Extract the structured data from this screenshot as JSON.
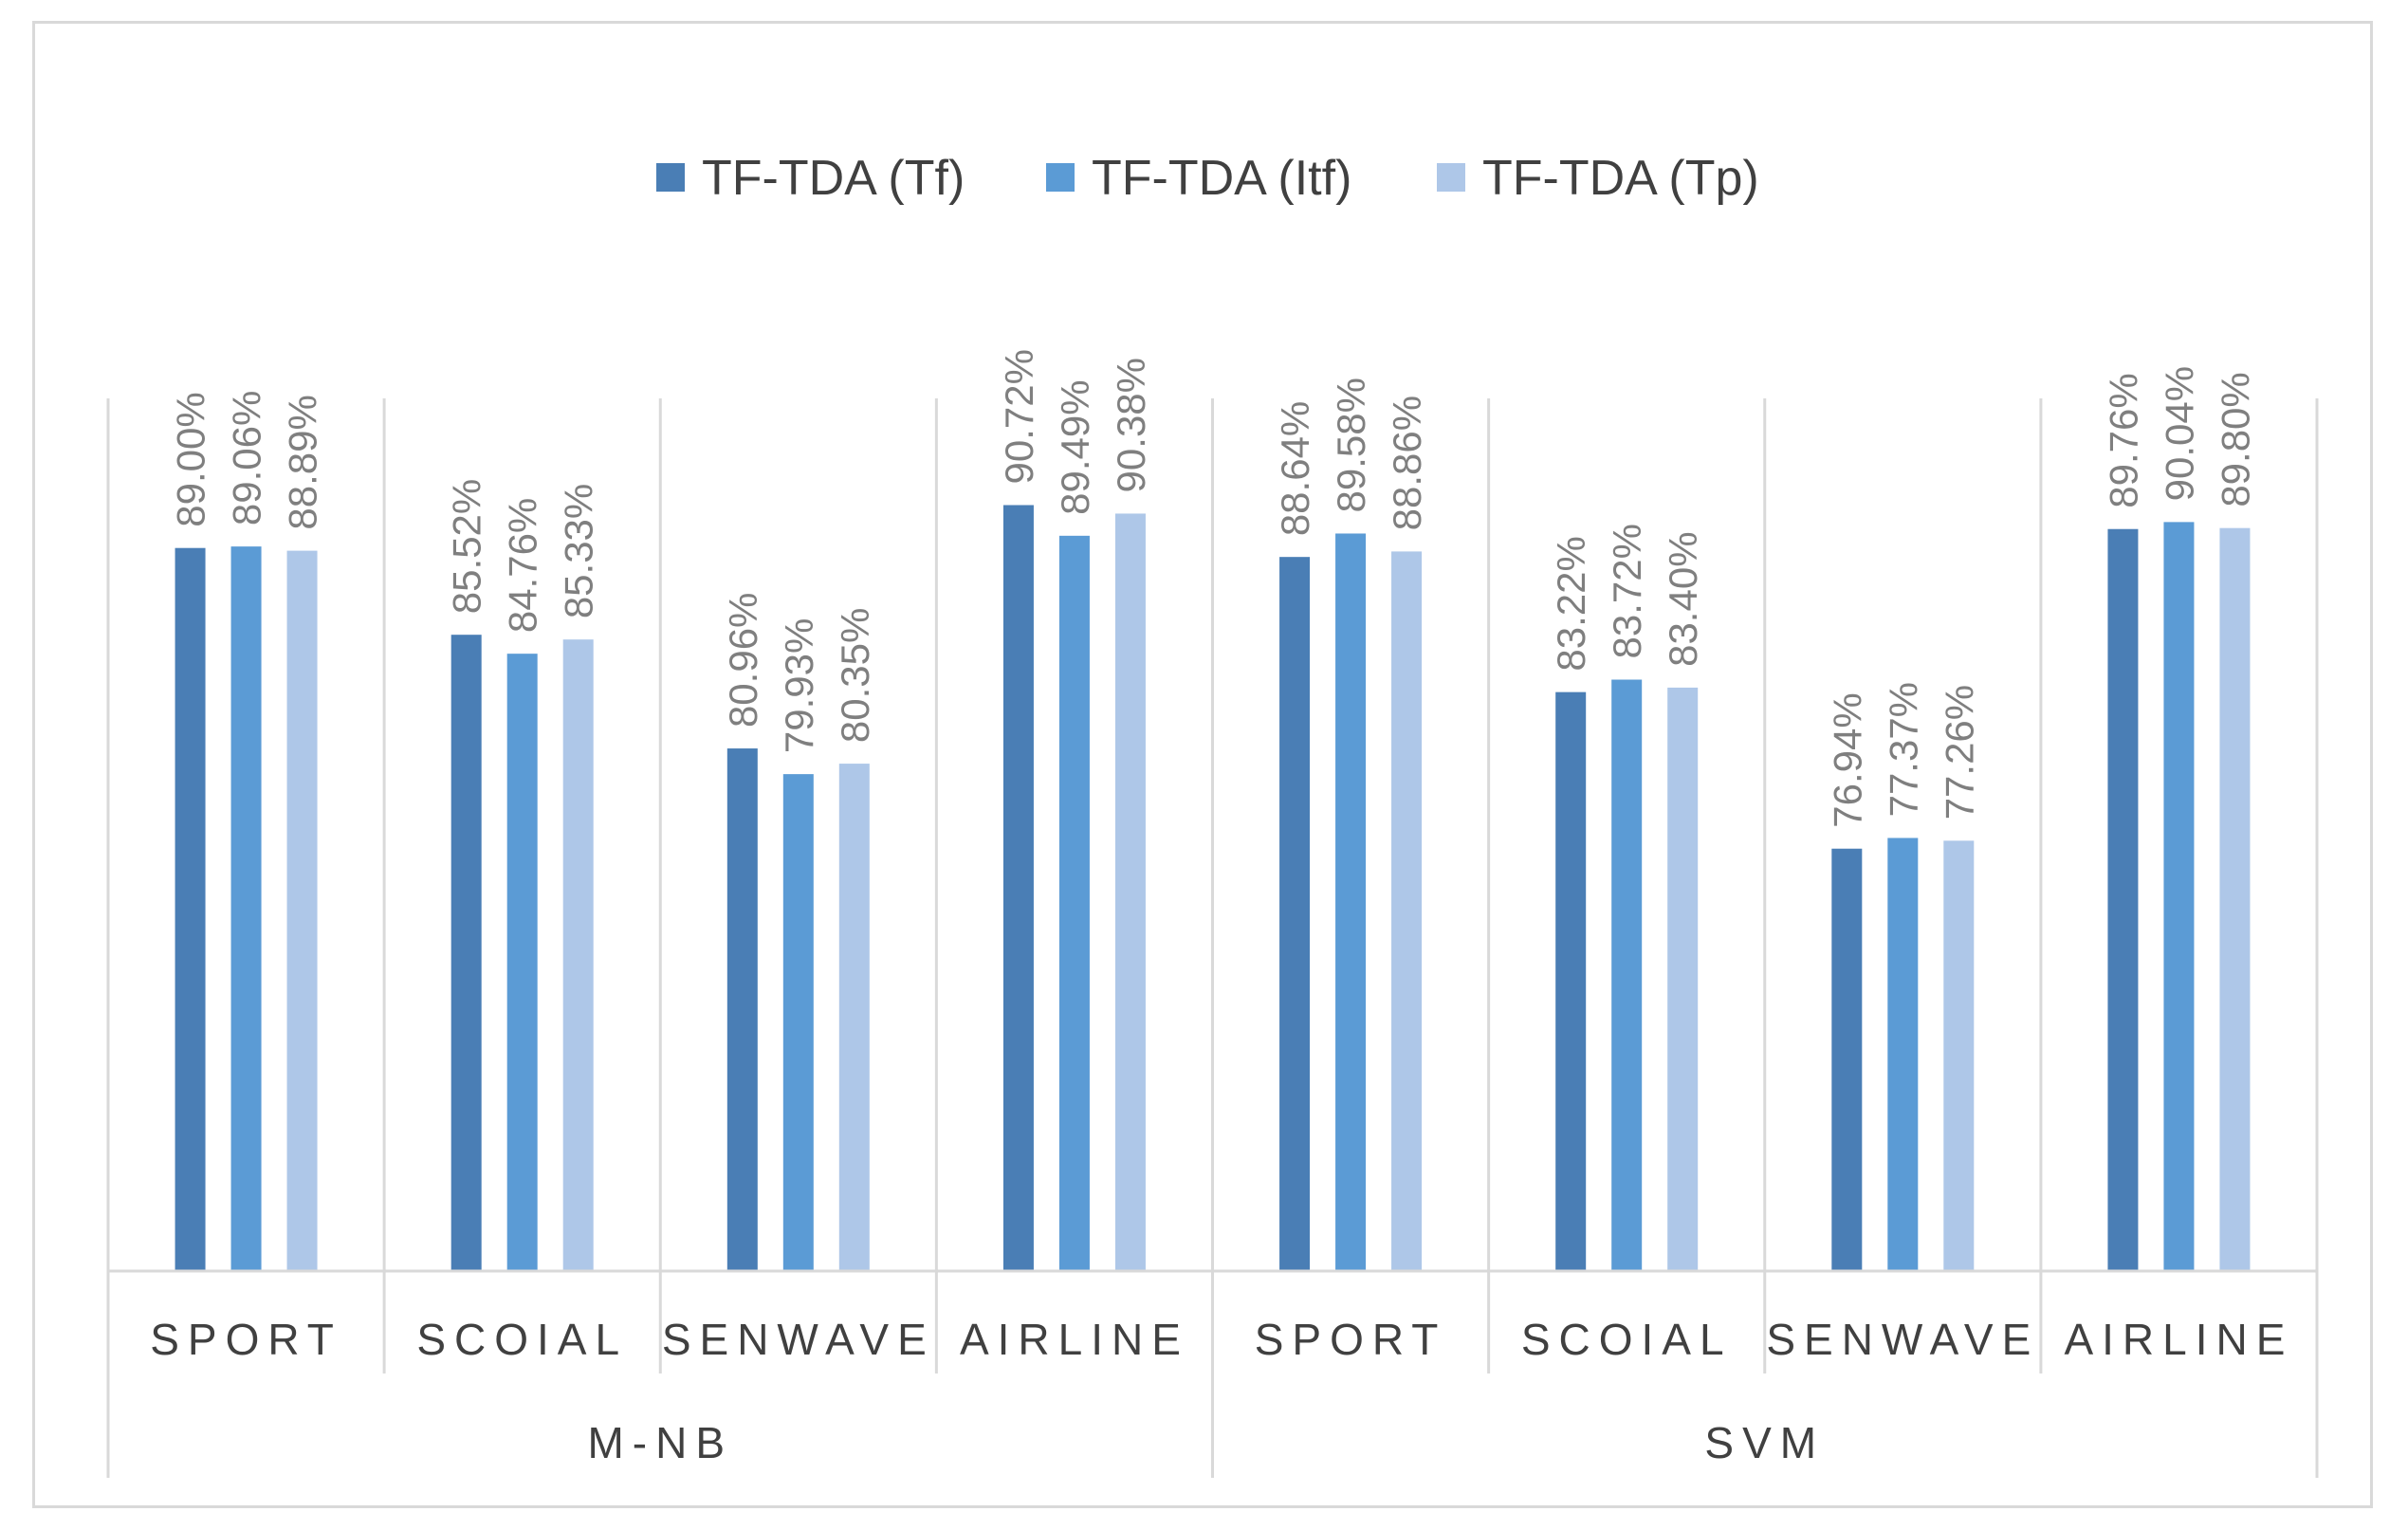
{
  "chart_data": {
    "type": "bar",
    "title": "",
    "xlabel": "",
    "ylabel": "",
    "ylim": [
      60,
      95
    ],
    "legend_position": "top-center",
    "groups": [
      {
        "label": "M-NB",
        "categories": [
          "SPORT",
          "SCOIAL",
          "SENWAVE",
          "AIRLINE"
        ]
      },
      {
        "label": "SVM",
        "categories": [
          "SPORT",
          "SCOIAL",
          "SENWAVE",
          "AIRLINE"
        ]
      }
    ],
    "categories": [
      "SPORT",
      "SCOIAL",
      "SENWAVE",
      "AIRLINE",
      "SPORT",
      "SCOIAL",
      "SENWAVE",
      "AIRLINE"
    ],
    "series": [
      {
        "name": "TF-TDA (Tf)",
        "color": "#4a7eb5",
        "values": [
          89.0,
          85.52,
          80.96,
          90.72,
          88.64,
          83.22,
          76.94,
          89.76
        ],
        "labels": [
          "89.00%",
          "85.52%",
          "80.96%",
          "90.72%",
          "88.64%",
          "83.22%",
          "76.94%",
          "89.76%"
        ]
      },
      {
        "name": "TF-TDA (Itf)",
        "color": "#5b9bd5",
        "values": [
          89.06,
          84.76,
          79.93,
          89.49,
          89.58,
          83.72,
          77.37,
          90.04
        ],
        "labels": [
          "89.06%",
          "84.76%",
          "79.93%",
          "89.49%",
          "89.58%",
          "83.72%",
          "77.37%",
          "90.04%"
        ]
      },
      {
        "name": "TF-TDA (Tp)",
        "color": "#aec7e8",
        "values": [
          88.89,
          85.33,
          80.35,
          90.38,
          88.86,
          83.4,
          77.26,
          89.8
        ],
        "labels": [
          "88.89%",
          "85.33%",
          "80.35%",
          "90.38%",
          "88.86%",
          "83.40%",
          "77.26%",
          "89.80%"
        ]
      }
    ]
  }
}
